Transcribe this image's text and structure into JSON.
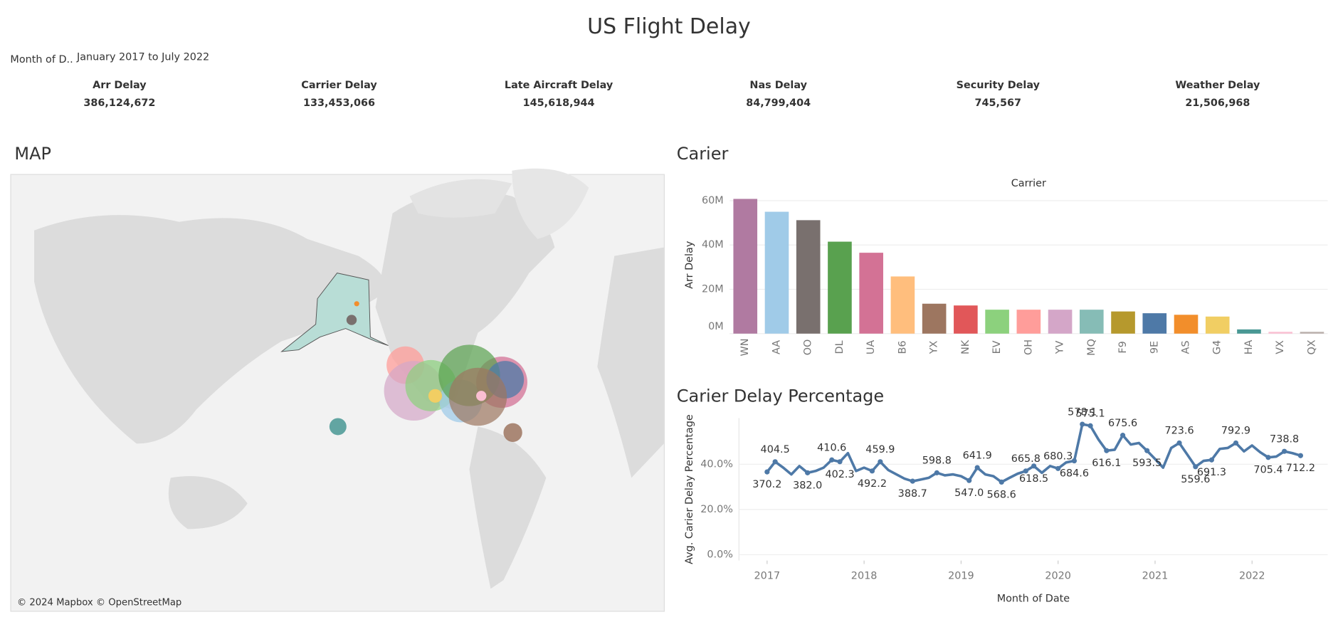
{
  "header": {
    "title": "US Flight Delay"
  },
  "filter": {
    "label": "Month of D..",
    "value": "January 2017 to July 2022"
  },
  "kpis": [
    {
      "label": "Arr Delay",
      "value": "386,124,672"
    },
    {
      "label": "Carrier Delay",
      "value": "133,453,066"
    },
    {
      "label": "Late Aircraft Delay",
      "value": "145,618,944"
    },
    {
      "label": "Nas Delay",
      "value": "84,799,404"
    },
    {
      "label": "Security Delay",
      "value": "745,567"
    },
    {
      "label": "Weather Delay",
      "value": "21,506,968"
    }
  ],
  "map": {
    "title": "MAP",
    "credit": "© 2024 Mapbox © OpenStreetMap"
  },
  "chart_data": [
    {
      "type": "bar",
      "section_title": "Carier",
      "title": "Carrier",
      "y_label": "Arr Delay",
      "categories": [
        "WN",
        "AA",
        "OO",
        "DL",
        "UA",
        "B6",
        "YX",
        "NK",
        "EV",
        "OH",
        "YV",
        "MQ",
        "F9",
        "9E",
        "AS",
        "G4",
        "HA",
        "VX",
        "QX"
      ],
      "values": [
        60800000,
        55000000,
        51200000,
        41500000,
        36500000,
        25800000,
        13500000,
        12700000,
        10800000,
        10800000,
        10800000,
        10800000,
        10000000,
        9200000,
        8500000,
        7700000,
        1900000,
        800000,
        800000
      ],
      "colors": [
        "#b07aa1",
        "#a0cbe8",
        "#79706e",
        "#59a14f",
        "#d37295",
        "#ffbe7d",
        "#9d7660",
        "#e15759",
        "#8cd17d",
        "#ff9d9a",
        "#d4a6c8",
        "#86bcb6",
        "#b6992d",
        "#4e79a7",
        "#f28e2b",
        "#f1ce63",
        "#499894",
        "#fabfd2",
        "#bab0ac"
      ],
      "ylim": [
        0,
        62000000
      ],
      "yticks": [
        {
          "value": 0,
          "label": "0M"
        },
        {
          "value": 20000000,
          "label": "20M"
        },
        {
          "value": 40000000,
          "label": "40M"
        },
        {
          "value": 60000000,
          "label": "60M"
        }
      ],
      "grid": true
    },
    {
      "type": "line",
      "section_title": "Carier Delay Percentage",
      "y_label": "Avg. Carier Delay Percentage",
      "x_label": "Month of Date",
      "color": "#4e79a7",
      "x": [
        2017.0,
        2017.083,
        2017.167,
        2017.25,
        2017.333,
        2017.417,
        2017.5,
        2017.583,
        2017.667,
        2017.75,
        2017.833,
        2017.917,
        2018.0,
        2018.083,
        2018.167,
        2018.25,
        2018.333,
        2018.417,
        2018.5,
        2018.583,
        2018.667,
        2018.75,
        2018.833,
        2018.917,
        2019.0,
        2019.083,
        2019.167,
        2019.25,
        2019.333,
        2019.417,
        2019.5,
        2019.583,
        2019.667,
        2019.75,
        2019.833,
        2019.917,
        2020.0,
        2020.083,
        2020.167,
        2020.25,
        2020.333,
        2020.417,
        2020.5,
        2020.583,
        2020.667,
        2020.75,
        2020.833,
        2020.917,
        2021.0,
        2021.083,
        2021.167,
        2021.25,
        2021.333,
        2021.417,
        2021.5,
        2021.583,
        2021.667,
        2021.75,
        2021.833,
        2021.917,
        2022.0,
        2022.083,
        2022.167,
        2022.25,
        2022.333,
        2022.417,
        2022.5
      ],
      "values": [
        36.6,
        41.1,
        38.5,
        35.5,
        39.2,
        36.2,
        37.0,
        38.5,
        41.9,
        41.1,
        44.9,
        37.0,
        38.5,
        37.0,
        41.1,
        37.4,
        35.5,
        33.6,
        32.5,
        33.2,
        34.0,
        36.2,
        35.1,
        35.5,
        34.7,
        32.8,
        38.5,
        35.5,
        34.7,
        32.1,
        34.0,
        35.8,
        37.0,
        39.2,
        36.2,
        39.2,
        38.1,
        40.8,
        41.5,
        57.7,
        57.0,
        50.9,
        46.0,
        46.4,
        52.8,
        48.7,
        49.4,
        46.0,
        42.3,
        38.5,
        47.2,
        49.4,
        44.2,
        38.9,
        41.5,
        41.9,
        46.8,
        47.2,
        49.4,
        45.7,
        48.3,
        45.3,
        43.0,
        43.4,
        45.7,
        44.9,
        43.8
      ],
      "labels": [
        "370.2",
        "404.5",
        null,
        null,
        null,
        "382.0",
        null,
        null,
        "410.6",
        "402.3",
        null,
        null,
        null,
        "492.2",
        "459.9",
        null,
        null,
        null,
        "388.7",
        null,
        null,
        "598.8",
        null,
        null,
        null,
        "547.0",
        "641.9",
        null,
        null,
        "568.6",
        null,
        null,
        "665.8",
        "618.5",
        null,
        null,
        "680.3",
        null,
        "684.6",
        "578.1",
        "575.1",
        null,
        "616.1",
        null,
        "675.6",
        null,
        null,
        "593.5",
        null,
        null,
        null,
        "723.6",
        null,
        "559.6",
        null,
        "691.3",
        null,
        null,
        "792.9",
        null,
        null,
        null,
        "705.4",
        null,
        "738.8",
        null,
        "712.2"
      ],
      "xlim": [
        2016.71,
        2022.78
      ],
      "xticks": [
        2017,
        2018,
        2019,
        2020,
        2021,
        2022
      ],
      "ylim": [
        -2.6,
        60.4
      ],
      "yticks": [
        {
          "value": 0,
          "label": "0.0%"
        },
        {
          "value": 20,
          "label": "20.0%"
        },
        {
          "value": 40,
          "label": "40.0%"
        }
      ],
      "grid": true
    }
  ]
}
